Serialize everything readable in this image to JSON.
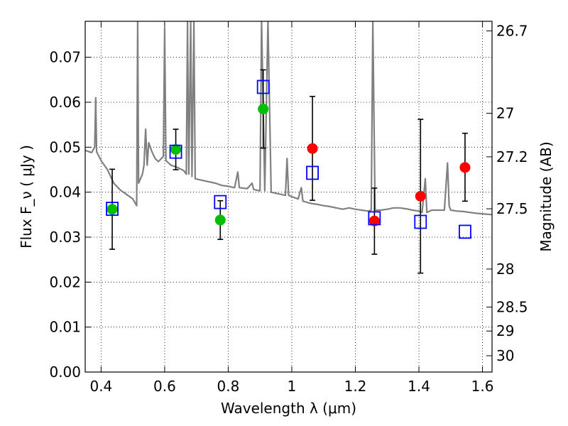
{
  "chart_data": {
    "type": "scatter",
    "xlabel": "Wavelength  λ (μm)",
    "ylabel_left": "Flux  F_ν  ( μJy )",
    "ylabel_right": "Magnitude (AB)",
    "xlim": [
      0.35,
      1.63
    ],
    "ylim": [
      0,
      0.078
    ],
    "x_ticks": [
      0.4,
      0.6,
      0.8,
      1.0,
      1.2,
      1.4,
      1.6
    ],
    "x_tick_labels": [
      "0.4",
      "0.6",
      "0.8",
      "1",
      "1.2",
      "1.4",
      "1.6"
    ],
    "y_ticks": [
      0.0,
      0.01,
      0.02,
      0.03,
      0.04,
      0.05,
      0.06,
      0.07
    ],
    "y_tick_labels": [
      "0.00",
      "0.01",
      "0.02",
      "0.03",
      "0.04",
      "0.05",
      "0.06",
      "0.07"
    ],
    "mag_ticks": [
      26.7,
      27,
      27.2,
      27.5,
      28,
      28.5,
      29,
      30
    ],
    "mag_tick_labels": [
      "26.7",
      "27",
      "27.2",
      "27.5",
      "28",
      "28.5",
      "29",
      "30"
    ],
    "grid": true,
    "series": [
      {
        "marker": "circle-filled",
        "color": "#00bf00",
        "points": [
          {
            "x": 0.435,
            "y": 0.0362,
            "yerr": [
              0.0273,
              0.0451
            ]
          },
          {
            "x": 0.635,
            "y": 0.0495,
            "yerr": [
              0.045,
              0.054
            ]
          },
          {
            "x": 0.775,
            "y": 0.0338,
            "yerr": [
              0.0295,
              0.0381
            ]
          },
          {
            "x": 0.91,
            "y": 0.0585,
            "yerr": [
              0.0498,
              0.0672
            ]
          }
        ]
      },
      {
        "marker": "circle-filled",
        "color": "#ff0000",
        "points": [
          {
            "x": 1.065,
            "y": 0.0497,
            "yerr": [
              0.0382,
              0.0613
            ]
          },
          {
            "x": 1.26,
            "y": 0.0336,
            "yerr": [
              0.0262,
              0.0409
            ]
          },
          {
            "x": 1.405,
            "y": 0.0391,
            "yerr": [
              0.022,
              0.0562
            ]
          },
          {
            "x": 1.545,
            "y": 0.0455,
            "yerr": [
              0.038,
              0.0531
            ]
          }
        ]
      },
      {
        "marker": "square-open",
        "color": "#0000ff",
        "points": [
          {
            "x": 0.435,
            "y": 0.0363
          },
          {
            "x": 0.635,
            "y": 0.049
          },
          {
            "x": 0.775,
            "y": 0.0378
          },
          {
            "x": 0.91,
            "y": 0.0634
          },
          {
            "x": 1.065,
            "y": 0.0443
          },
          {
            "x": 1.26,
            "y": 0.0342
          },
          {
            "x": 1.405,
            "y": 0.0334
          },
          {
            "x": 1.545,
            "y": 0.0312
          }
        ]
      },
      {
        "marker": "line",
        "color": "#808080",
        "points": [
          [
            0.35,
            0.0493
          ],
          [
            0.37,
            0.0488
          ],
          [
            0.38,
            0.05
          ],
          [
            0.383,
            0.061
          ],
          [
            0.386,
            0.049
          ],
          [
            0.4,
            0.047
          ],
          [
            0.42,
            0.045
          ],
          [
            0.44,
            0.042
          ],
          [
            0.46,
            0.0405
          ],
          [
            0.48,
            0.0395
          ],
          [
            0.5,
            0.0385
          ],
          [
            0.512,
            0.037
          ],
          [
            0.515,
            0.078
          ],
          [
            0.518,
            0.042
          ],
          [
            0.53,
            0.044
          ],
          [
            0.535,
            0.046
          ],
          [
            0.54,
            0.054
          ],
          [
            0.545,
            0.046
          ],
          [
            0.55,
            0.051
          ],
          [
            0.56,
            0.049
          ],
          [
            0.57,
            0.0475
          ],
          [
            0.58,
            0.0468
          ],
          [
            0.59,
            0.0475
          ],
          [
            0.596,
            0.048
          ],
          [
            0.6,
            0.0765
          ],
          [
            0.604,
            0.047
          ],
          [
            0.62,
            0.046
          ],
          [
            0.64,
            0.0455
          ],
          [
            0.66,
            0.0448
          ],
          [
            0.668,
            0.044
          ],
          [
            0.672,
            0.078
          ],
          [
            0.676,
            0.044
          ],
          [
            0.682,
            0.078
          ],
          [
            0.686,
            0.0435
          ],
          [
            0.692,
            0.078
          ],
          [
            0.696,
            0.043
          ],
          [
            0.72,
            0.0426
          ],
          [
            0.74,
            0.0423
          ],
          [
            0.76,
            0.042
          ],
          [
            0.78,
            0.0415
          ],
          [
            0.8,
            0.0413
          ],
          [
            0.82,
            0.041
          ],
          [
            0.83,
            0.0445
          ],
          [
            0.835,
            0.041
          ],
          [
            0.86,
            0.0408
          ],
          [
            0.875,
            0.042
          ],
          [
            0.88,
            0.0406
          ],
          [
            0.9,
            0.0403
          ],
          [
            0.905,
            0.078
          ],
          [
            0.915,
            0.0403
          ],
          [
            0.925,
            0.078
          ],
          [
            0.935,
            0.04
          ],
          [
            0.96,
            0.0396
          ],
          [
            0.98,
            0.0393
          ],
          [
            0.985,
            0.0475
          ],
          [
            0.99,
            0.0393
          ],
          [
            1.0,
            0.039
          ],
          [
            1.02,
            0.0385
          ],
          [
            1.03,
            0.041
          ],
          [
            1.035,
            0.038
          ],
          [
            1.06,
            0.0375
          ],
          [
            1.08,
            0.0373
          ],
          [
            1.1,
            0.037
          ],
          [
            1.12,
            0.0368
          ],
          [
            1.14,
            0.0365
          ],
          [
            1.16,
            0.0362
          ],
          [
            1.18,
            0.0365
          ],
          [
            1.2,
            0.0362
          ],
          [
            1.22,
            0.036
          ],
          [
            1.24,
            0.0358
          ],
          [
            1.25,
            0.036
          ],
          [
            1.255,
            0.078
          ],
          [
            1.262,
            0.036
          ],
          [
            1.28,
            0.036
          ],
          [
            1.3,
            0.0362
          ],
          [
            1.32,
            0.0365
          ],
          [
            1.34,
            0.0365
          ],
          [
            1.36,
            0.0363
          ],
          [
            1.38,
            0.036
          ],
          [
            1.4,
            0.0358
          ],
          [
            1.41,
            0.0355
          ],
          [
            1.42,
            0.043
          ],
          [
            1.425,
            0.0355
          ],
          [
            1.44,
            0.036
          ],
          [
            1.46,
            0.036
          ],
          [
            1.48,
            0.036
          ],
          [
            1.49,
            0.0465
          ],
          [
            1.495,
            0.037
          ],
          [
            1.5,
            0.036
          ],
          [
            1.52,
            0.0358
          ],
          [
            1.54,
            0.0357
          ],
          [
            1.56,
            0.0355
          ],
          [
            1.58,
            0.0353
          ],
          [
            1.6,
            0.0352
          ],
          [
            1.63,
            0.035
          ]
        ]
      }
    ]
  }
}
